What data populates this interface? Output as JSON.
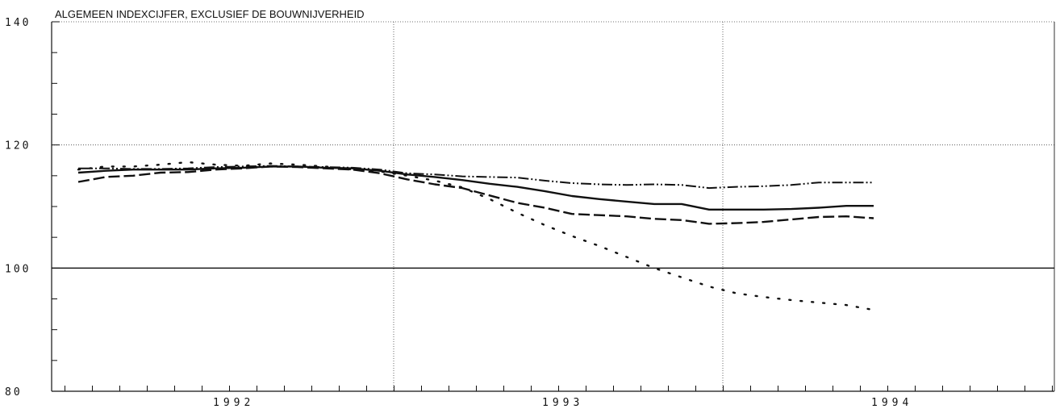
{
  "chart_data": {
    "type": "line",
    "title": "ALGEMEEN INDEXCIJFER, EXCLUSIEF DE BOUWNIJVERHEID",
    "xlabel": "",
    "ylabel": "",
    "ylim": [
      80,
      140
    ],
    "y_ticks": [
      80,
      100,
      120,
      140
    ],
    "y_minor_step": 5,
    "x_year_labels": [
      {
        "label": "1992",
        "month": 6
      },
      {
        "label": "1993",
        "month": 18
      },
      {
        "label": "1994",
        "month": 30
      }
    ],
    "x_range_months": [
      0,
      36
    ],
    "grid": {
      "horizontal": [
        120,
        140
      ],
      "vertical_months": [
        12,
        24
      ],
      "reference_line": 100
    },
    "series": [
      {
        "style": "solid",
        "x": [
          0,
          1,
          2,
          3,
          4,
          5,
          6,
          7,
          8,
          9,
          10,
          11,
          12,
          13,
          14,
          15,
          16,
          17,
          18,
          19,
          20,
          21,
          22,
          23,
          24,
          25,
          26,
          27,
          28,
          29
        ],
        "values": [
          115.5,
          115.8,
          116.0,
          116.0,
          116.0,
          116.2,
          116.3,
          116.5,
          116.5,
          116.3,
          116.2,
          115.8,
          115.2,
          114.8,
          114.3,
          113.7,
          113.2,
          112.5,
          111.7,
          111.2,
          110.8,
          110.4,
          110.4,
          109.5,
          109.5,
          109.5,
          109.6,
          109.8,
          110.1,
          110.1
        ]
      },
      {
        "style": "dashed",
        "x": [
          0,
          1,
          2,
          3,
          4,
          5,
          6,
          7,
          8,
          9,
          10,
          11,
          12,
          13,
          14,
          15,
          16,
          17,
          18,
          19,
          20,
          21,
          22,
          23,
          24,
          25,
          26,
          27,
          28,
          29
        ],
        "values": [
          114.0,
          114.8,
          115.0,
          115.5,
          115.6,
          116.0,
          116.2,
          116.5,
          116.4,
          116.2,
          116.0,
          115.4,
          114.4,
          113.6,
          113.0,
          111.8,
          110.6,
          109.8,
          108.8,
          108.6,
          108.4,
          108.0,
          107.8,
          107.2,
          107.3,
          107.5,
          107.9,
          108.3,
          108.4,
          108.1
        ]
      },
      {
        "style": "dash-dot-dot",
        "x": [
          0,
          1,
          2,
          3,
          4,
          5,
          6,
          7,
          8,
          9,
          10,
          11,
          12,
          13,
          14,
          15,
          16,
          17,
          18,
          19,
          20,
          21,
          22,
          23,
          24,
          25,
          26,
          27,
          28,
          29
        ],
        "values": [
          116.2,
          116.2,
          116.1,
          116.1,
          116.2,
          116.4,
          116.5,
          116.6,
          116.5,
          116.4,
          116.3,
          116.0,
          115.4,
          115.2,
          114.9,
          114.8,
          114.7,
          114.2,
          113.8,
          113.6,
          113.5,
          113.6,
          113.5,
          113.0,
          113.2,
          113.3,
          113.5,
          113.9,
          113.9,
          113.9
        ]
      },
      {
        "style": "dotted",
        "x": [
          0,
          1,
          2,
          3,
          4,
          5,
          6,
          7,
          8,
          9,
          10,
          11,
          12,
          13,
          14,
          15,
          16,
          17,
          18,
          19,
          20,
          21,
          22,
          23,
          24,
          25,
          26,
          27,
          28,
          29
        ],
        "values": [
          116.0,
          116.5,
          116.5,
          116.8,
          117.2,
          116.8,
          116.6,
          117.0,
          116.8,
          116.5,
          116.0,
          115.7,
          115.0,
          114.2,
          113.1,
          111.2,
          109.0,
          107.0,
          105.2,
          103.6,
          101.8,
          100.0,
          98.5,
          97.0,
          95.9,
          95.3,
          94.8,
          94.4,
          94.0,
          93.2
        ]
      }
    ]
  }
}
